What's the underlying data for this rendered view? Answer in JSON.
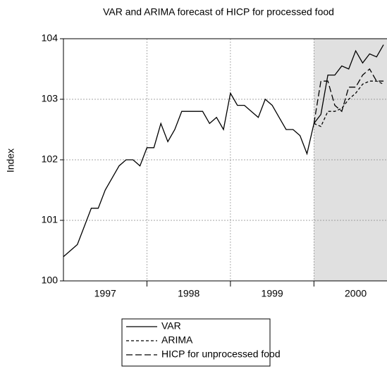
{
  "chart_data": {
    "type": "line",
    "title": "VAR and ARIMA forecast of HICP for processed food",
    "y_label": "Index",
    "x": [
      1997,
      1997.0833,
      1997.1667,
      1997.25,
      1997.3333,
      1997.4167,
      1997.5,
      1997.5833,
      1997.6667,
      1997.75,
      1997.8333,
      1997.9167,
      1998,
      1998.0833,
      1998.1667,
      1998.25,
      1998.3333,
      1998.4167,
      1998.5,
      1998.5833,
      1998.6667,
      1998.75,
      1998.8333,
      1998.9167,
      1999,
      1999.0833,
      1999.1667,
      1999.25,
      1999.3333,
      1999.4167,
      1999.5,
      1999.5833,
      1999.6667,
      1999.75,
      1999.8333,
      1999.9167,
      2000,
      2000.0833,
      2000.1667,
      2000.25,
      2000.3333,
      2000.4167,
      2000.5,
      2000.5833,
      2000.6667,
      2000.75,
      2000.8333
    ],
    "series": [
      {
        "name": "VAR",
        "color": "#000000",
        "dash": "solid",
        "values": [
          100.4,
          100.5,
          100.6,
          100.9,
          101.2,
          101.2,
          101.5,
          101.7,
          101.9,
          102.0,
          102.0,
          101.9,
          102.2,
          102.2,
          102.6,
          102.3,
          102.5,
          102.8,
          102.8,
          102.8,
          102.8,
          102.6,
          102.7,
          102.5,
          103.1,
          102.9,
          102.9,
          102.8,
          102.7,
          103.0,
          102.9,
          102.7,
          102.5,
          102.5,
          102.4,
          102.1,
          102.6,
          102.75,
          103.4,
          103.4,
          103.55,
          103.5,
          103.8,
          103.6,
          103.75,
          103.7,
          103.9
        ]
      },
      {
        "name": "ARIMA",
        "color": "#000000",
        "dash": "short",
        "values": [
          null,
          null,
          null,
          null,
          null,
          null,
          null,
          null,
          null,
          null,
          null,
          null,
          null,
          null,
          null,
          null,
          null,
          null,
          null,
          null,
          null,
          null,
          null,
          null,
          null,
          null,
          null,
          null,
          null,
          null,
          null,
          null,
          null,
          null,
          null,
          null,
          102.6,
          102.55,
          102.8,
          102.8,
          102.85,
          103.0,
          103.1,
          103.25,
          103.3,
          103.3,
          103.25
        ]
      },
      {
        "name": "HICP for unprocessed food",
        "color": "#000000",
        "dash": "long",
        "values": [
          null,
          null,
          null,
          null,
          null,
          null,
          null,
          null,
          null,
          null,
          null,
          null,
          null,
          null,
          null,
          null,
          null,
          null,
          null,
          null,
          null,
          null,
          null,
          null,
          null,
          null,
          null,
          null,
          null,
          null,
          null,
          null,
          null,
          null,
          null,
          null,
          102.6,
          103.3,
          103.3,
          102.9,
          102.8,
          103.2,
          103.2,
          103.4,
          103.5,
          103.3,
          103.3
        ]
      }
    ],
    "xlim": [
      1997,
      2000.875
    ],
    "xticks": [
      {
        "value": 1997.5,
        "label": "1997"
      },
      {
        "value": 1998.5,
        "label": "1998"
      },
      {
        "value": 1999.5,
        "label": "1999"
      },
      {
        "value": 2000.5,
        "label": "2000"
      }
    ],
    "x_gridlines": [
      1998,
      1999,
      2000
    ],
    "ylim": [
      100,
      104
    ],
    "yticks": [
      100,
      101,
      102,
      103,
      104
    ],
    "grid": true,
    "shade_from": 2000,
    "shade_color": "#e0e0e0",
    "legend": "bottom"
  }
}
